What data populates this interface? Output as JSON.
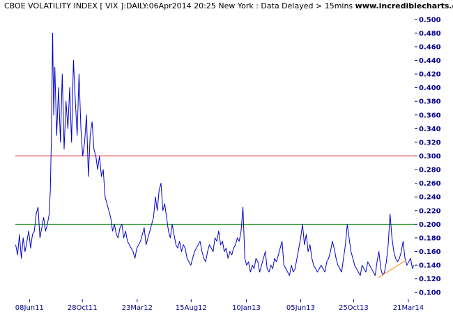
{
  "header": {
    "title": "CBOE VOLATILITY INDEX [ VIX ]:DAILY:06Apr2014 20:25 New York : Data Delayed > 15mins",
    "brand": "www.incrediblecharts.com"
  },
  "colors": {
    "series": "#0000cc",
    "upper_line": "#dd0000",
    "lower_line": "#008800",
    "trendline": "#ff9933",
    "axis_text": "#00008b",
    "background": "#ffffff"
  },
  "chart_data": {
    "type": "line",
    "ylim": [
      0.09,
      0.51
    ],
    "xlim": [
      "2011-05-01",
      "2014-04-07"
    ],
    "yticks": [
      0.1,
      0.12,
      0.14,
      0.16,
      0.18,
      0.2,
      0.22,
      0.24,
      0.26,
      0.28,
      0.3,
      0.32,
      0.34,
      0.36,
      0.38,
      0.4,
      0.42,
      0.44,
      0.46,
      0.48,
      0.5
    ],
    "ytick_labels": [
      "0.100",
      "0.120",
      "0.140",
      "0.160",
      "0.180",
      "0.200",
      "0.220",
      "0.240",
      "0.260",
      "0.280",
      "0.300",
      "0.320",
      "0.340",
      "0.360",
      "0.380",
      "0.400",
      "0.420",
      "0.440",
      "0.460",
      "0.480",
      "0.500"
    ],
    "xticks": [
      "2011-06-08",
      "2011-10-28",
      "2012-03-23",
      "2012-08-15",
      "2013-01-10",
      "2013-06-05",
      "2013-10-25",
      "2014-03-21"
    ],
    "xtick_labels": [
      "08Jun11",
      "28Oct11",
      "23Mar12",
      "15Aug12",
      "10Jan13",
      "05Jun13",
      "25Oct13",
      "21Mar14"
    ],
    "hlines": [
      {
        "y": 0.3,
        "role": "upper"
      },
      {
        "y": 0.2,
        "role": "lower"
      }
    ],
    "trendline": {
      "x": [
        "2013-12-31",
        "2014-03-17"
      ],
      "y": [
        0.122,
        0.148
      ]
    },
    "series": [
      {
        "x": [
          "2011-05-02",
          "2011-05-07",
          "2011-05-12",
          "2011-05-17",
          "2011-05-22",
          "2011-05-27",
          "2011-06-01",
          "2011-06-06",
          "2011-06-11",
          "2011-06-16",
          "2011-06-21",
          "2011-06-26",
          "2011-07-01",
          "2011-07-06",
          "2011-07-11",
          "2011-07-16",
          "2011-07-21",
          "2011-07-26",
          "2011-07-31",
          "2011-08-03",
          "2011-08-06",
          "2011-08-09",
          "2011-08-12",
          "2011-08-15",
          "2011-08-20",
          "2011-08-25",
          "2011-08-30",
          "2011-09-04",
          "2011-09-09",
          "2011-09-14",
          "2011-09-19",
          "2011-09-24",
          "2011-09-29",
          "2011-10-04",
          "2011-10-09",
          "2011-10-14",
          "2011-10-19",
          "2011-10-24",
          "2011-10-29",
          "2011-11-03",
          "2011-11-08",
          "2011-11-13",
          "2011-11-18",
          "2011-11-23",
          "2011-11-28",
          "2011-12-03",
          "2011-12-08",
          "2011-12-13",
          "2011-12-18",
          "2011-12-23",
          "2011-12-28",
          "2012-01-02",
          "2012-01-07",
          "2012-01-12",
          "2012-01-17",
          "2012-01-22",
          "2012-01-27",
          "2012-02-01",
          "2012-02-06",
          "2012-02-11",
          "2012-02-16",
          "2012-02-21",
          "2012-02-26",
          "2012-03-02",
          "2012-03-07",
          "2012-03-12",
          "2012-03-17",
          "2012-03-22",
          "2012-03-27",
          "2012-04-01",
          "2012-04-06",
          "2012-04-11",
          "2012-04-16",
          "2012-04-21",
          "2012-04-26",
          "2012-05-01",
          "2012-05-06",
          "2012-05-11",
          "2012-05-16",
          "2012-05-21",
          "2012-05-26",
          "2012-05-31",
          "2012-06-05",
          "2012-06-10",
          "2012-06-15",
          "2012-06-20",
          "2012-06-25",
          "2012-06-30",
          "2012-07-05",
          "2012-07-10",
          "2012-07-15",
          "2012-07-20",
          "2012-07-25",
          "2012-07-30",
          "2012-08-04",
          "2012-08-09",
          "2012-08-14",
          "2012-08-19",
          "2012-08-24",
          "2012-08-29",
          "2012-09-03",
          "2012-09-08",
          "2012-09-13",
          "2012-09-18",
          "2012-09-23",
          "2012-09-28",
          "2012-10-03",
          "2012-10-08",
          "2012-10-13",
          "2012-10-18",
          "2012-10-23",
          "2012-10-28",
          "2012-11-02",
          "2012-11-07",
          "2012-11-12",
          "2012-11-17",
          "2012-11-22",
          "2012-11-27",
          "2012-12-02",
          "2012-12-07",
          "2012-12-12",
          "2012-12-17",
          "2012-12-22",
          "2012-12-27",
          "2013-01-01",
          "2013-01-06",
          "2013-01-11",
          "2013-01-16",
          "2013-01-21",
          "2013-01-26",
          "2013-01-31",
          "2013-02-05",
          "2013-02-10",
          "2013-02-15",
          "2013-02-20",
          "2013-02-25",
          "2013-03-02",
          "2013-03-07",
          "2013-03-12",
          "2013-03-17",
          "2013-03-22",
          "2013-03-27",
          "2013-04-01",
          "2013-04-06",
          "2013-04-11",
          "2013-04-16",
          "2013-04-21",
          "2013-04-26",
          "2013-05-01",
          "2013-05-06",
          "2013-05-11",
          "2013-05-16",
          "2013-05-21",
          "2013-05-26",
          "2013-05-31",
          "2013-06-05",
          "2013-06-10",
          "2013-06-15",
          "2013-06-20",
          "2013-06-25",
          "2013-06-30",
          "2013-07-05",
          "2013-07-10",
          "2013-07-15",
          "2013-07-20",
          "2013-07-25",
          "2013-07-30",
          "2013-08-04",
          "2013-08-09",
          "2013-08-14",
          "2013-08-19",
          "2013-08-24",
          "2013-08-29",
          "2013-09-03",
          "2013-09-08",
          "2013-09-13",
          "2013-09-18",
          "2013-09-23",
          "2013-09-28",
          "2013-10-03",
          "2013-10-08",
          "2013-10-13",
          "2013-10-18",
          "2013-10-23",
          "2013-10-28",
          "2013-11-02",
          "2013-11-07",
          "2013-11-12",
          "2013-11-17",
          "2013-11-22",
          "2013-11-27",
          "2013-12-02",
          "2013-12-07",
          "2013-12-12",
          "2013-12-17",
          "2013-12-22",
          "2013-12-27",
          "2014-01-01",
          "2014-01-06",
          "2014-01-11",
          "2014-01-16",
          "2014-01-21",
          "2014-01-26",
          "2014-01-31",
          "2014-02-05",
          "2014-02-10",
          "2014-02-15",
          "2014-02-20",
          "2014-02-25",
          "2014-03-02",
          "2014-03-07",
          "2014-03-12",
          "2014-03-17",
          "2014-03-22",
          "2014-03-27",
          "2014-04-01",
          "2014-04-04"
        ],
        "values": [
          0.17,
          0.155,
          0.185,
          0.15,
          0.18,
          0.16,
          0.175,
          0.19,
          0.165,
          0.185,
          0.19,
          0.215,
          0.225,
          0.18,
          0.195,
          0.21,
          0.19,
          0.2,
          0.215,
          0.25,
          0.33,
          0.48,
          0.36,
          0.43,
          0.33,
          0.4,
          0.32,
          0.42,
          0.31,
          0.38,
          0.34,
          0.4,
          0.32,
          0.44,
          0.38,
          0.33,
          0.42,
          0.34,
          0.3,
          0.32,
          0.36,
          0.27,
          0.33,
          0.35,
          0.31,
          0.3,
          0.28,
          0.3,
          0.27,
          0.28,
          0.24,
          0.23,
          0.22,
          0.21,
          0.19,
          0.2,
          0.185,
          0.18,
          0.195,
          0.2,
          0.18,
          0.19,
          0.175,
          0.17,
          0.165,
          0.16,
          0.15,
          0.165,
          0.17,
          0.175,
          0.185,
          0.195,
          0.17,
          0.18,
          0.19,
          0.2,
          0.21,
          0.24,
          0.22,
          0.25,
          0.26,
          0.22,
          0.23,
          0.21,
          0.19,
          0.18,
          0.2,
          0.185,
          0.17,
          0.165,
          0.175,
          0.16,
          0.17,
          0.165,
          0.15,
          0.145,
          0.14,
          0.15,
          0.16,
          0.165,
          0.17,
          0.175,
          0.16,
          0.15,
          0.145,
          0.16,
          0.17,
          0.165,
          0.16,
          0.18,
          0.175,
          0.19,
          0.17,
          0.175,
          0.16,
          0.165,
          0.15,
          0.16,
          0.155,
          0.165,
          0.17,
          0.18,
          0.175,
          0.19,
          0.225,
          0.15,
          0.14,
          0.145,
          0.13,
          0.14,
          0.135,
          0.15,
          0.145,
          0.13,
          0.14,
          0.15,
          0.16,
          0.135,
          0.13,
          0.14,
          0.135,
          0.15,
          0.145,
          0.155,
          0.165,
          0.175,
          0.14,
          0.135,
          0.13,
          0.125,
          0.14,
          0.13,
          0.135,
          0.15,
          0.165,
          0.18,
          0.2,
          0.17,
          0.185,
          0.16,
          0.17,
          0.15,
          0.14,
          0.135,
          0.13,
          0.135,
          0.14,
          0.135,
          0.13,
          0.145,
          0.15,
          0.16,
          0.175,
          0.165,
          0.15,
          0.14,
          0.135,
          0.13,
          0.15,
          0.17,
          0.2,
          0.18,
          0.16,
          0.15,
          0.14,
          0.135,
          0.13,
          0.125,
          0.14,
          0.135,
          0.13,
          0.145,
          0.14,
          0.135,
          0.13,
          0.125,
          0.145,
          0.16,
          0.135,
          0.125,
          0.13,
          0.145,
          0.17,
          0.215,
          0.18,
          0.16,
          0.15,
          0.145,
          0.15,
          0.16,
          0.175,
          0.15,
          0.14,
          0.145,
          0.15,
          0.135,
          0.14
        ]
      }
    ]
  }
}
